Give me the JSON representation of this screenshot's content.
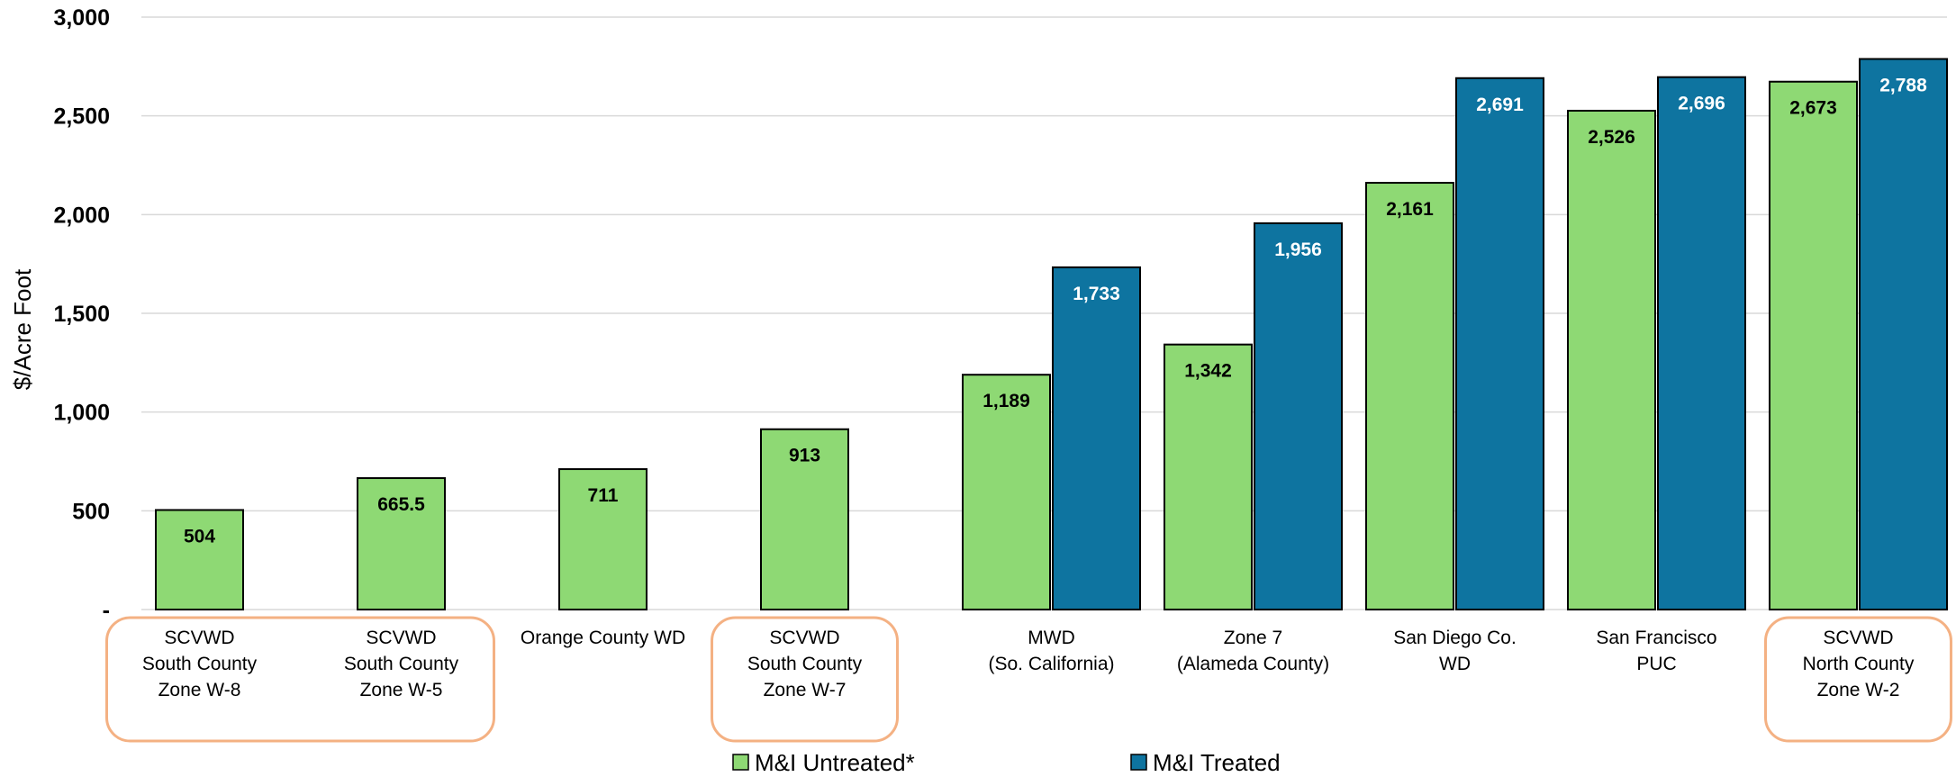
{
  "chart_data": {
    "type": "bar",
    "ylabel": "$/Acre Foot",
    "ylim": [
      0,
      3000
    ],
    "yticks": [
      0,
      500,
      1000,
      1500,
      2000,
      2500,
      3000
    ],
    "ytick_labels": [
      "-",
      "500",
      "1,000",
      "1,500",
      "2,000",
      "2,500",
      "3,000"
    ],
    "grid": true,
    "legend_position": "bottom",
    "categories": [
      [
        "SCVWD",
        "South County",
        "Zone W-8"
      ],
      [
        "SCVWD",
        "South County",
        "Zone W-5"
      ],
      [
        "Orange County WD"
      ],
      [
        "SCVWD",
        "South County",
        "Zone W-7"
      ],
      [
        "MWD",
        "(So. California)"
      ],
      [
        "Zone 7",
        "(Alameda County)"
      ],
      [
        "San Diego Co.",
        "WD"
      ],
      [
        "San Francisco",
        "PUC"
      ],
      [
        "SCVWD",
        "North County",
        "Zone W-2"
      ]
    ],
    "series": [
      {
        "name": "M&I Untreated*",
        "color": "#8ed974",
        "label_color": "#000000",
        "values": [
          504,
          665.5,
          711,
          913,
          1189,
          1342,
          2161,
          2526,
          2673
        ],
        "labels": [
          "504",
          "665.5",
          "711",
          "913",
          "1,189",
          "1,342",
          "2,161",
          "2,526",
          "2,673"
        ]
      },
      {
        "name": "M&I Treated",
        "color": "#0e74a0",
        "label_color": "#ffffff",
        "values": [
          null,
          null,
          null,
          null,
          1733,
          1956,
          2691,
          2696,
          2788
        ],
        "labels": [
          null,
          null,
          null,
          null,
          "1,733",
          "1,956",
          "2,691",
          "2,696",
          "2,788"
        ]
      }
    ],
    "highlighted_groups": [
      [
        0,
        1
      ],
      [
        3
      ],
      [
        8
      ]
    ],
    "highlight_color": "#f4b183"
  }
}
